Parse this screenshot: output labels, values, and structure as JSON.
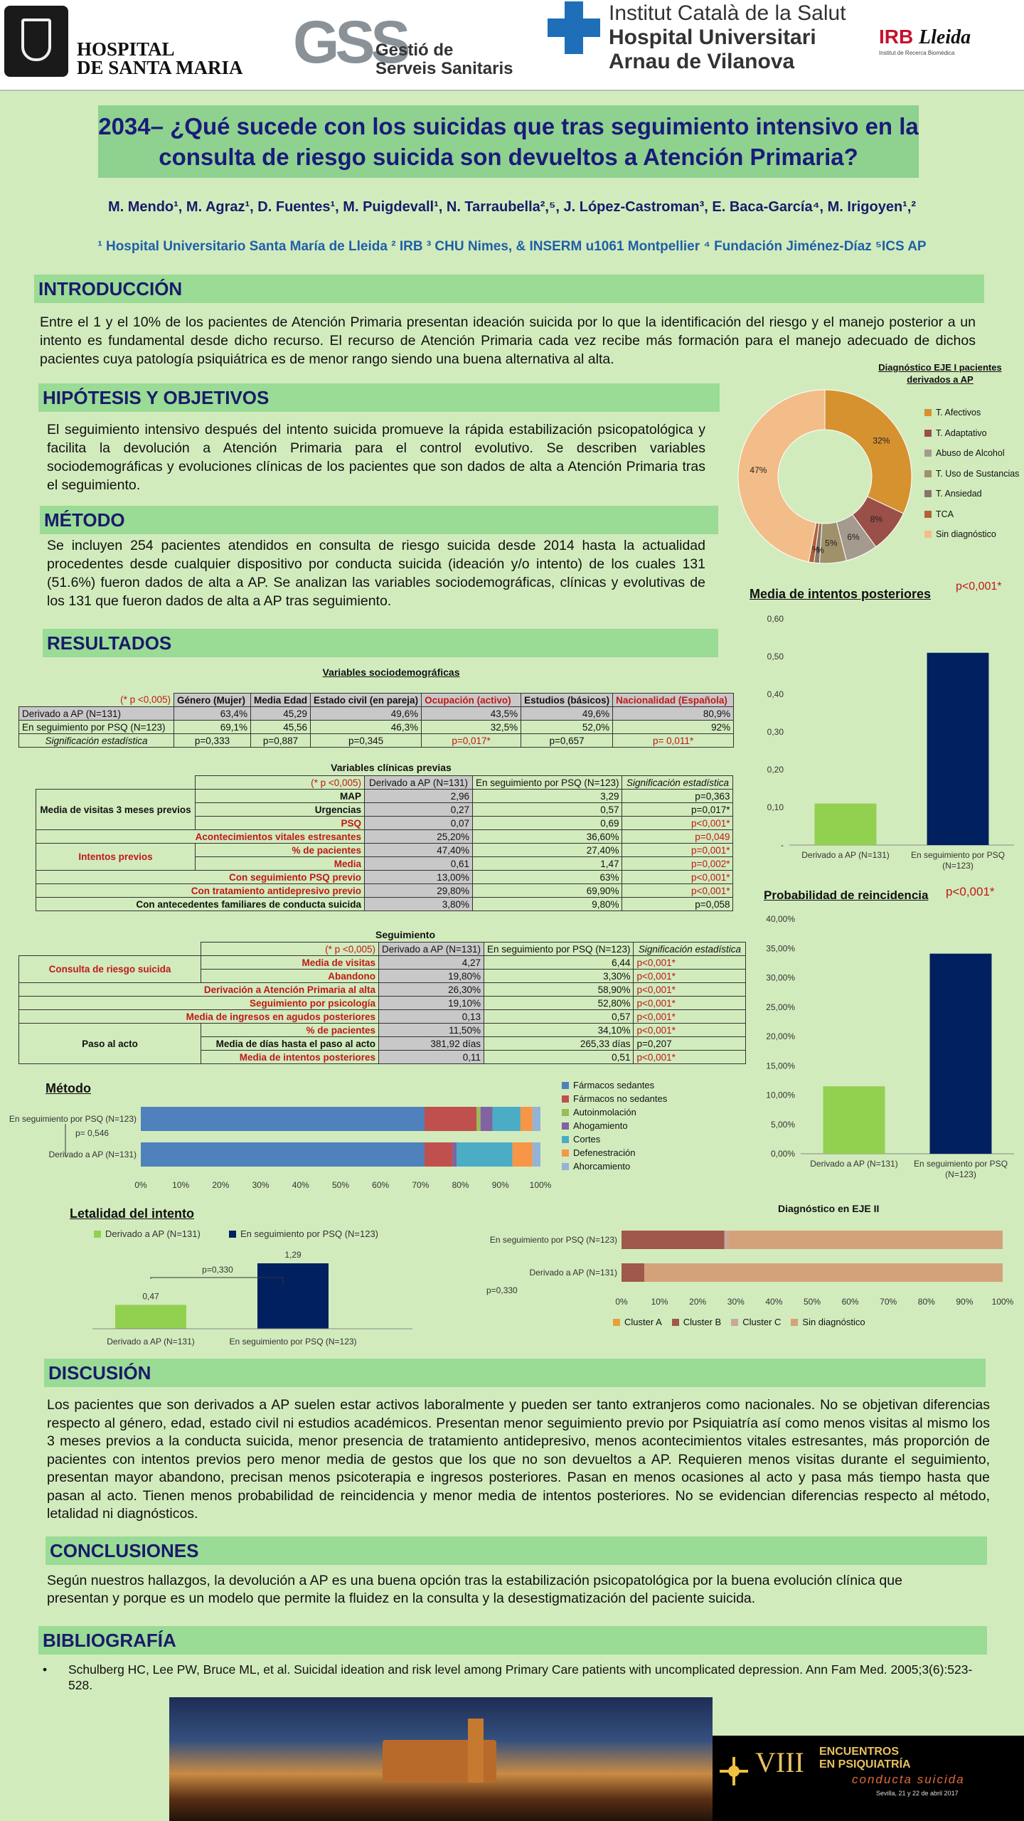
{
  "logos": {
    "hsm_line1": "HOSPITAL",
    "hsm_line2": "DE SANTA MARIA",
    "gss_line1": "Gestió de",
    "gss_line2": "Serveis Sanitaris",
    "ics_line1": "Institut Català de la Salut",
    "ics_line2": "Hospital Universitari",
    "ics_line3": "Arnau de Vilanova",
    "irb": "IRB",
    "irb_lleida": "Lleida",
    "irb_sub": "Institut de Recerca Biomèdica"
  },
  "title": {
    "line1": "2034– ¿Qué sucede con los suicidas que tras seguimiento intensivo en la",
    "line2": "consulta de riesgo suicida son devueltos a Atención Primaria?"
  },
  "authors": "M. Mendo¹, M. Agraz¹, D. Fuentes¹, M. Puigdevall¹, N. Tarraubella²,⁵, J. López-Castroman³, E. Baca-García⁴, M. Irigoyen¹,²",
  "affiliations": "¹ Hospital Universitario Santa María de Lleida  ² IRB  ³ CHU Nimes, & INSERM u1061 Montpellier ⁴ Fundación Jiménez-Díaz  ⁵ICS AP",
  "sections": {
    "intro": "INTRODUCCIÓN",
    "hipotesis": "HIPÓTESIS Y OBJETIVOS",
    "metodo": "MÉTODO",
    "resultados": "RESULTADOS",
    "discusion": "DISCUSIÓN",
    "conclusiones": "CONCLUSIONES",
    "bibliografia": "BIBLIOGRAFÍA"
  },
  "text": {
    "intro": "Entre el 1 y el 10% de los pacientes de Atención Primaria presentan ideación suicida por lo que la identificación del riesgo y el manejo posterior a un intento es fundamental desde dicho recurso. El recurso de Atención Primaria cada vez recibe más formación para el manejo adecuado de dichos pacientes cuya patología psiquiátrica es de menor rango siendo una buena alternativa al alta.",
    "hipotesis": "El seguimiento intensivo después del intento suicida promueve la rápida estabilización psicopatológica y facilita la devolución a Atención Primaria para el control evolutivo. Se describen variables sociodemográficas y evoluciones clínicas de los pacientes que son dados de alta a Atención Primaria tras el seguimiento.",
    "metodo": "Se incluyen 254 pacientes atendidos en consulta de riesgo suicida desde 2014 hasta la actualidad procedentes desde cualquier dispositivo por conducta suicida (ideación y/o intento) de los cuales 131 (51.6%) fueron dados de alta a AP. Se analizan las variables sociodemográficas, clínicas y evolutivas de los 131 que fueron dados de alta a AP tras seguimiento.",
    "discusion": "Los pacientes que son derivados a AP suelen estar activos laboralmente y pueden ser tanto extranjeros como nacionales. No se objetivan diferencias respecto al género, edad, estado civil ni estudios académicos. Presentan menor seguimiento previo por Psiquiatría así como menos visitas al mismo los 3 meses previos a la conducta suicida, menor presencia de tratamiento antidepresivo, menos acontecimientos vitales estresantes, más proporción de pacientes con intentos previos pero menor media de gestos que los que no son devueltos a AP. Requieren menos visitas durante el seguimiento, presentan mayor abandono, precisan menos psicoterapia e ingresos posteriores. Pasan en menos ocasiones al acto y pasa más tiempo hasta que pasan al acto. Tienen menos probabilidad de reincidencia y menor media de intentos posteriores. No se evidencian diferencias respecto al método, letalidad ni diagnósticos.",
    "conclusiones": "Según nuestros hallazgos, la devolución a AP es una buena opción tras la estabilización psicopatológica por la buena evolución clínica que presentan y porque es un modelo que permite la fluidez en la consulta y la desestigmatización del paciente suicida.",
    "biblio": "Schulberg HC, Lee PW, Bruce ML, et al. Suicidal ideation and risk level among Primary Care patients with uncomplicated depression. Ann Fam Med. 2005;3(6):523-528."
  },
  "socio": {
    "title": "Variables sociodemográficas",
    "note": "(* p <0,005)",
    "headers": [
      "Género (Mujer)",
      "Media Edad",
      "Estado civil (en pareja)",
      "Ocupación (activo)",
      "Estudios (básicos)",
      "Nacionalidad (Española)"
    ],
    "rows": [
      {
        "label": "Derivado a AP (N=131)",
        "vals": [
          "63,4%",
          "45,29",
          "49,6%",
          "43,5%",
          "49,6%",
          "80,9%"
        ]
      },
      {
        "label": "En seguimiento por PSQ (N=123)",
        "vals": [
          "69,1%",
          "45,56",
          "46,3%",
          "32,5%",
          "52,0%",
          "92%"
        ]
      },
      {
        "label": "Significación estadística",
        "vals": [
          "p=0,333",
          "p=0,887",
          "p=0,345",
          "p=0,017*",
          "p=0,657",
          "p= 0,011*"
        ]
      }
    ]
  },
  "clin": {
    "title": "Variables clínicas previas",
    "note": "(* p <0,005)",
    "h1": "Derivado a AP (N=131)",
    "h2": "En seguimiento por PSQ (N=123)",
    "h3": "Significación estadística",
    "g1": "Media de visitas 3 meses previos",
    "g2": "Intentos previos",
    "rows": [
      [
        "MAP",
        "2,96",
        "3,29",
        "p=0,363"
      ],
      [
        "Urgencias",
        "0,27",
        "0,57",
        "p=0,017*"
      ],
      [
        "PSQ",
        "0,07",
        "0,69",
        "p<0,001*"
      ],
      [
        "Acontecimientos vitales estresantes",
        "25,20%",
        "36,60%",
        "p=0,049"
      ],
      [
        "% de pacientes",
        "47,40%",
        "27,40%",
        "p=0,001*"
      ],
      [
        "Media",
        "0,61",
        "1,47",
        "p=0,002*"
      ],
      [
        "Con seguimiento PSQ previo",
        "13,00%",
        "63%",
        "p<0,001*"
      ],
      [
        "Con tratamiento antidepresivo previo",
        "29,80%",
        "69,90%",
        "p<0,001*"
      ],
      [
        "Con antecedentes familiares de conducta suicida",
        "3,80%",
        "9,80%",
        "p=0,058"
      ]
    ]
  },
  "seg": {
    "title": "Seguimiento",
    "note": "(* p <0,005)",
    "h1": "Derivado a AP (N=131)",
    "h2": "En seguimiento por PSQ (N=123)",
    "h3": "Significación estadística",
    "g1": "Consulta de riesgo suicida",
    "g2": "Paso al acto",
    "rows": [
      [
        "Media de visitas",
        "4,27",
        "6,44",
        "p<0,001*"
      ],
      [
        "Abandono",
        "19,80%",
        "3,30%",
        "p<0,001*"
      ],
      [
        "Derivación a Atención Primaria al alta",
        "26,30%",
        "58,90%",
        "p<0,001*"
      ],
      [
        "Seguimiento por psicología",
        "19,10%",
        "52,80%",
        "p<0,001*"
      ],
      [
        "Media de ingresos en agudos posteriores",
        "0,13",
        "0,57",
        "p<0,001*"
      ],
      [
        "% de pacientes",
        "11,50%",
        "34,10%",
        "p<0,001*"
      ],
      [
        "Media de días hasta el paso al acto",
        "381,92 días",
        "265,33 días",
        "p=0,207"
      ],
      [
        "Media de intentos posteriores",
        "0,11",
        "0,51",
        "p<0,001*"
      ]
    ]
  },
  "chart_data": [
    {
      "type": "pie",
      "title": "Diagnóstico EJE I pacientes derivados a AP",
      "labels": [
        "T. Afectivos",
        "T. Adaptativo",
        "Abuso de Alcohol",
        "T. Uso de Sustancias",
        "T. Ansiedad",
        "TCA",
        "Sin diagnóstico"
      ],
      "values": [
        32,
        8,
        6,
        5,
        1,
        1,
        47
      ],
      "value_labels": [
        "32%",
        "8%",
        "6%",
        "5%",
        "1%",
        "1%",
        "47%"
      ],
      "colors": [
        "#d6922f",
        "#9a5048",
        "#a49a8e",
        "#a0916a",
        "#877569",
        "#b36036",
        "#f2bd88"
      ]
    },
    {
      "type": "bar",
      "title": "Media de intentos posteriores",
      "annotation": "p<0,001*",
      "categories": [
        "Derivado a AP (N=131)",
        "En seguimiento por PSQ (N=123)"
      ],
      "values": [
        0.11,
        0.51
      ],
      "ylim": [
        0,
        0.6
      ],
      "yticks": [
        "-",
        "0,10",
        "0,20",
        "0,30",
        "0,40",
        "0,50",
        "0,60"
      ],
      "colors": [
        "#92d050",
        "#002060"
      ]
    },
    {
      "type": "bar",
      "title": "Probabilidad de reincidencia",
      "annotation": "p<0,001*",
      "categories": [
        "Derivado a AP (N=131)",
        "En seguimiento por PSQ (N=123)"
      ],
      "values": [
        11.5,
        34.1
      ],
      "ylim": [
        0,
        40
      ],
      "yticks": [
        "0,00%",
        "5,00%",
        "10,00%",
        "15,00%",
        "20,00%",
        "25,00%",
        "30,00%",
        "35,00%",
        "40,00%"
      ],
      "colors": [
        "#92d050",
        "#002060"
      ]
    },
    {
      "type": "bar",
      "title": "Método",
      "orientation": "horizontal-stacked-100",
      "annotation": "p= 0,546",
      "categories": [
        "En seguimiento por PSQ (N=123)",
        "Derivado a AP (N=131)"
      ],
      "series": [
        {
          "name": "Fármacos sedantes",
          "values": [
            71,
            71
          ],
          "color": "#4f81bd"
        },
        {
          "name": "Fármacos no sedantes",
          "values": [
            13,
            7
          ],
          "color": "#c0504d"
        },
        {
          "name": "Autoinmolación",
          "values": [
            1,
            0
          ],
          "color": "#9bbb59"
        },
        {
          "name": "Ahogamiento",
          "values": [
            3,
            1
          ],
          "color": "#8064a2"
        },
        {
          "name": "Cortes",
          "values": [
            7,
            14
          ],
          "color": "#4bacc6"
        },
        {
          "name": "Defenestración",
          "values": [
            3,
            5
          ],
          "color": "#f79646"
        },
        {
          "name": "Ahorcamiento",
          "values": [
            2,
            2
          ],
          "color": "#95b3d7"
        }
      ],
      "xticks": [
        "0%",
        "10%",
        "20%",
        "30%",
        "40%",
        "50%",
        "60%",
        "70%",
        "80%",
        "90%",
        "100%"
      ]
    },
    {
      "type": "bar",
      "title": "Letalidad del intento",
      "annotation": "p=0,330",
      "categories": [
        "Derivado a AP (N=131)",
        "En seguimiento por PSQ (N=123)"
      ],
      "values": [
        0.47,
        1.29
      ],
      "value_labels": [
        "0,47",
        "1,29"
      ],
      "colors": [
        "#92d050",
        "#002060"
      ]
    },
    {
      "type": "bar",
      "title": "Diagnóstico en EJE II",
      "orientation": "horizontal-stacked-100",
      "annotation": "p=0,330",
      "categories": [
        "En seguimiento por PSQ (N=123)",
        "Derivado a AP (N=131)"
      ],
      "series": [
        {
          "name": "Cluster A",
          "values": [
            0,
            0
          ],
          "color": "#e8a03a"
        },
        {
          "name": "Cluster B",
          "values": [
            27,
            6
          ],
          "color": "#a0584c"
        },
        {
          "name": "Cluster C",
          "values": [
            1,
            0
          ],
          "color": "#c9a898"
        },
        {
          "name": "Sin diagnóstico",
          "values": [
            72,
            94
          ],
          "color": "#d4a27a"
        }
      ],
      "xticks": [
        "0%",
        "10%",
        "20%",
        "30%",
        "40%",
        "50%",
        "60%",
        "70%",
        "80%",
        "90%",
        "100%"
      ]
    }
  ],
  "event": {
    "roman": "VIII",
    "line1": "ENCUENTROS",
    "line2": "EN PSIQUIATRÍA",
    "line3": "conducta suicida",
    "line4": "Sevilla, 21 y 22 de abril 2017"
  }
}
